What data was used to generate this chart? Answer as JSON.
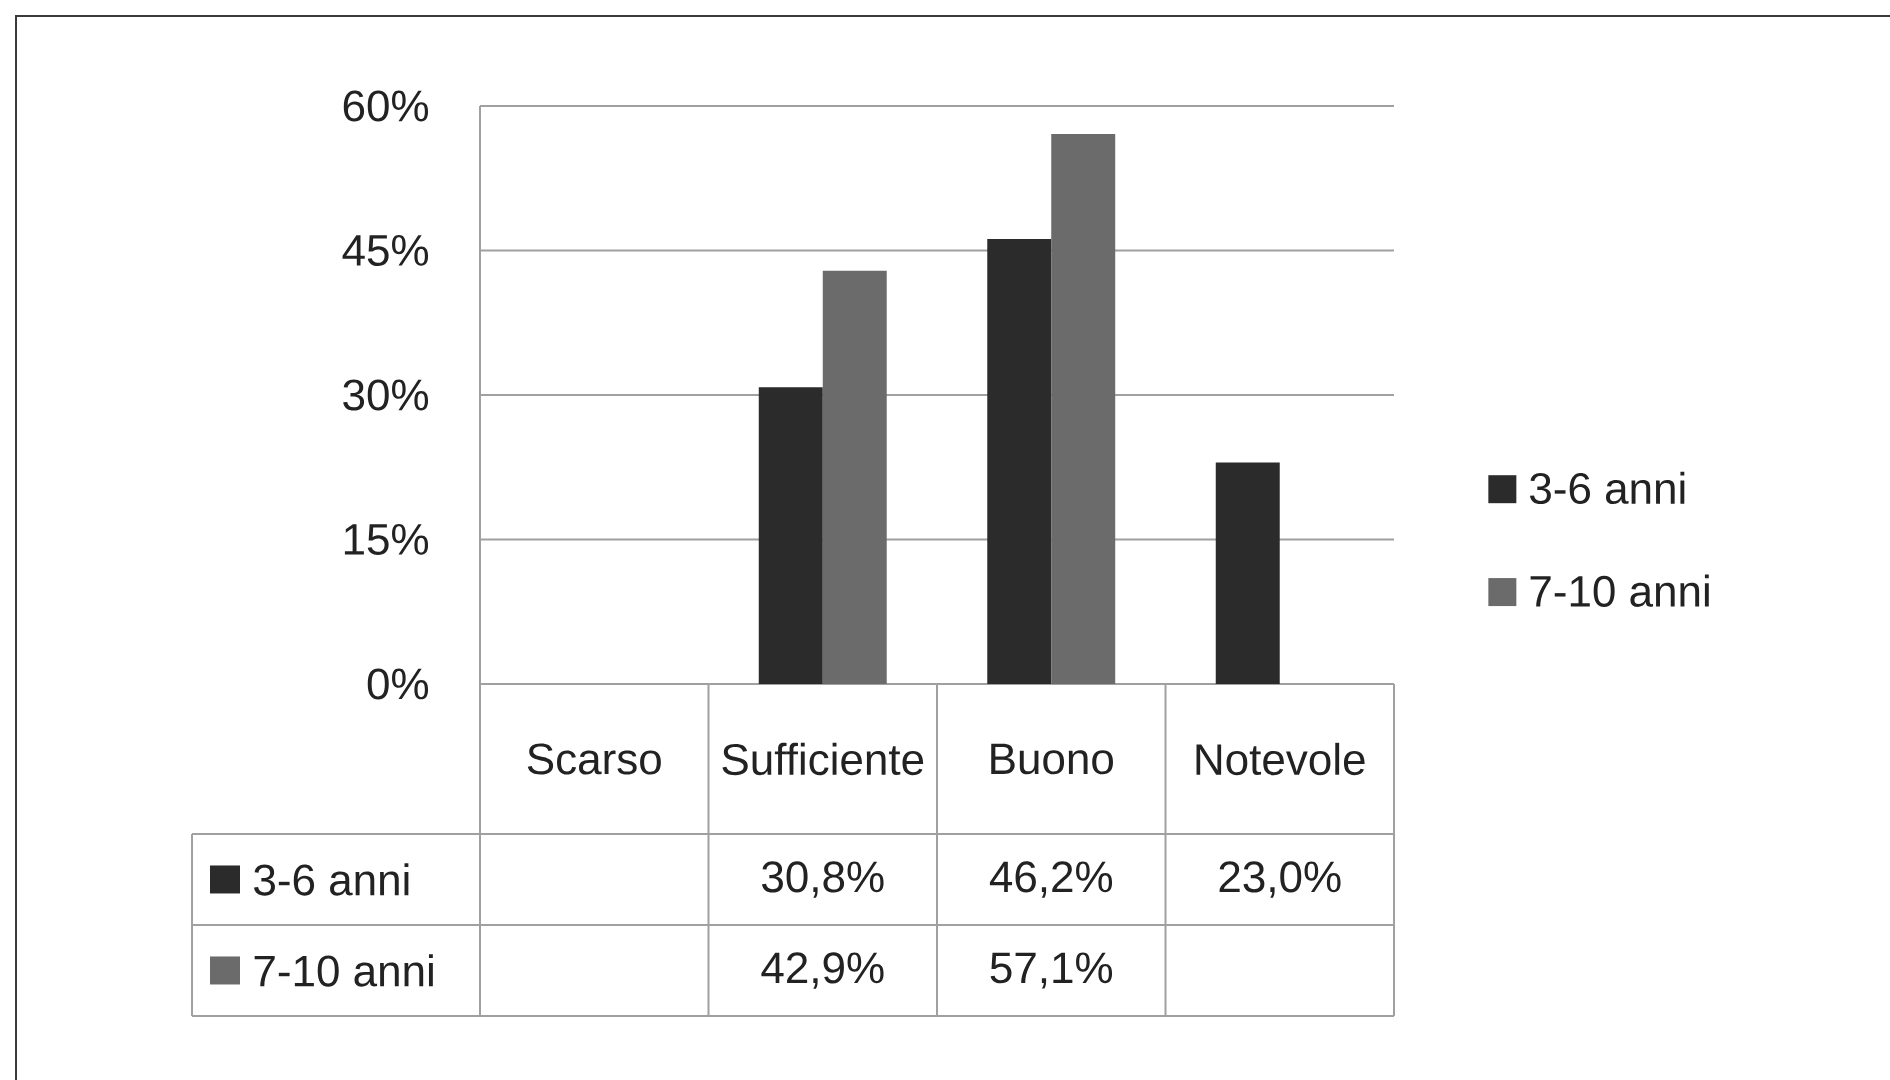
{
  "chart_data": {
    "type": "bar",
    "categories": [
      "Scarso",
      "Sufficiente",
      "Buono",
      "Notevole"
    ],
    "series": [
      {
        "name": "3-6 anni",
        "color": "#2b2b2b",
        "values": [
          null,
          30.8,
          46.2,
          23.0
        ],
        "value_labels": [
          null,
          "30,8%",
          "46,2%",
          "23,0%"
        ]
      },
      {
        "name": "7-10 anni",
        "color": "#6b6b6b",
        "values": [
          null,
          42.9,
          57.1,
          null
        ],
        "value_labels": [
          null,
          "42,9%",
          "57,1%",
          null
        ]
      }
    ],
    "ylim": [
      0,
      60
    ],
    "yticks": [
      {
        "value": 0,
        "label": "0%"
      },
      {
        "value": 15,
        "label": "15%"
      },
      {
        "value": 30,
        "label": "30%"
      },
      {
        "value": 45,
        "label": "45%"
      },
      {
        "value": 60,
        "label": "60%"
      }
    ],
    "grid": "y",
    "legend": "right"
  }
}
